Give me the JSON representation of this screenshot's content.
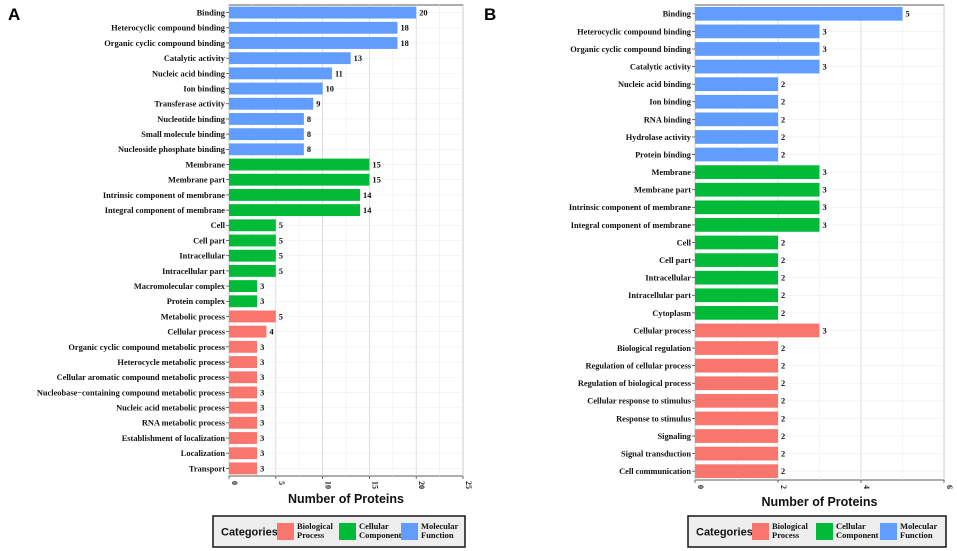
{
  "chart_data": [
    {
      "panel": "A",
      "type": "bar",
      "orientation": "horizontal",
      "xlabel": "Number of Proteins",
      "xlim": [
        0,
        25
      ],
      "xticks": [
        0,
        5,
        10,
        15,
        20,
        25
      ],
      "grid": true,
      "legend": {
        "title": "Categories",
        "position": "bottom",
        "items": [
          {
            "label_lines": [
              "Biological",
              "Process"
            ],
            "color": "#F8766D"
          },
          {
            "label_lines": [
              "Cellular",
              "Component"
            ],
            "color": "#00BA38"
          },
          {
            "label_lines": [
              "Molecular",
              "Function"
            ],
            "color": "#619CFF"
          }
        ]
      },
      "bars": [
        {
          "label": "Binding",
          "value": 20,
          "color": "#619CFF"
        },
        {
          "label": "Heterocyclic compound binding",
          "value": 18,
          "color": "#619CFF"
        },
        {
          "label": "Organic cyclic compound binding",
          "value": 18,
          "color": "#619CFF"
        },
        {
          "label": "Catalytic activity",
          "value": 13,
          "color": "#619CFF"
        },
        {
          "label": "Nucleic acid binding",
          "value": 11,
          "color": "#619CFF"
        },
        {
          "label": "Ion binding",
          "value": 10,
          "color": "#619CFF"
        },
        {
          "label": "Transferase activity",
          "value": 9,
          "color": "#619CFF"
        },
        {
          "label": "Nucleotide binding",
          "value": 8,
          "color": "#619CFF"
        },
        {
          "label": "Small molecule binding",
          "value": 8,
          "color": "#619CFF"
        },
        {
          "label": "Nucleoside phosphate binding",
          "value": 8,
          "color": "#619CFF"
        },
        {
          "label": "Membrane",
          "value": 15,
          "color": "#00BA38"
        },
        {
          "label": "Membrane part",
          "value": 15,
          "color": "#00BA38"
        },
        {
          "label": "Intrinsic component of membrane",
          "value": 14,
          "color": "#00BA38"
        },
        {
          "label": "Integral component of membrane",
          "value": 14,
          "color": "#00BA38"
        },
        {
          "label": "Cell",
          "value": 5,
          "color": "#00BA38"
        },
        {
          "label": "Cell part",
          "value": 5,
          "color": "#00BA38"
        },
        {
          "label": "Intracellular",
          "value": 5,
          "color": "#00BA38"
        },
        {
          "label": "Intracellular part",
          "value": 5,
          "color": "#00BA38"
        },
        {
          "label": "Macromolecular complex",
          "value": 3,
          "color": "#00BA38"
        },
        {
          "label": "Protein complex",
          "value": 3,
          "color": "#00BA38"
        },
        {
          "label": "Metabolic process",
          "value": 5,
          "color": "#F8766D"
        },
        {
          "label": "Cellular process",
          "value": 4,
          "color": "#F8766D"
        },
        {
          "label": "Organic cyclic compound metabolic process",
          "value": 3,
          "color": "#F8766D"
        },
        {
          "label": "Heterocycle metabolic process",
          "value": 3,
          "color": "#F8766D"
        },
        {
          "label": "Cellular aromatic compound metabolic process",
          "value": 3,
          "color": "#F8766D"
        },
        {
          "label": "Nucleobase−containing compound metabolic process",
          "value": 3,
          "color": "#F8766D"
        },
        {
          "label": "Nucleic acid metabolic process",
          "value": 3,
          "color": "#F8766D"
        },
        {
          "label": "RNA metabolic process",
          "value": 3,
          "color": "#F8766D"
        },
        {
          "label": "Establishment of localization",
          "value": 3,
          "color": "#F8766D"
        },
        {
          "label": "Localization",
          "value": 3,
          "color": "#F8766D"
        },
        {
          "label": "Transport",
          "value": 3,
          "color": "#F8766D"
        }
      ]
    },
    {
      "panel": "B",
      "type": "bar",
      "orientation": "horizontal",
      "xlabel": "Number of Proteins",
      "xlim": [
        0,
        6
      ],
      "xticks": [
        0,
        2,
        4,
        6
      ],
      "grid": true,
      "legend": {
        "title": "Categories",
        "position": "bottom",
        "items": [
          {
            "label_lines": [
              "Biological",
              "Process"
            ],
            "color": "#F8766D"
          },
          {
            "label_lines": [
              "Cellular",
              "Component"
            ],
            "color": "#00BA38"
          },
          {
            "label_lines": [
              "Molecular",
              "Function"
            ],
            "color": "#619CFF"
          }
        ]
      },
      "bars": [
        {
          "label": "Binding",
          "value": 5,
          "color": "#619CFF"
        },
        {
          "label": "Heterocyclic compound binding",
          "value": 3,
          "color": "#619CFF"
        },
        {
          "label": "Organic cyclic compound binding",
          "value": 3,
          "color": "#619CFF"
        },
        {
          "label": "Catalytic activity",
          "value": 3,
          "color": "#619CFF"
        },
        {
          "label": "Nucleic acid binding",
          "value": 2,
          "color": "#619CFF"
        },
        {
          "label": "Ion binding",
          "value": 2,
          "color": "#619CFF"
        },
        {
          "label": "RNA binding",
          "value": 2,
          "color": "#619CFF"
        },
        {
          "label": "Hydrolase activity",
          "value": 2,
          "color": "#619CFF"
        },
        {
          "label": "Protein binding",
          "value": 2,
          "color": "#619CFF"
        },
        {
          "label": "Membrane",
          "value": 3,
          "color": "#00BA38"
        },
        {
          "label": "Membrane part",
          "value": 3,
          "color": "#00BA38"
        },
        {
          "label": "Intrinsic component of membrane",
          "value": 3,
          "color": "#00BA38"
        },
        {
          "label": "Integral component of membrane",
          "value": 3,
          "color": "#00BA38"
        },
        {
          "label": "Cell",
          "value": 2,
          "color": "#00BA38"
        },
        {
          "label": "Cell part",
          "value": 2,
          "color": "#00BA38"
        },
        {
          "label": "Intracellular",
          "value": 2,
          "color": "#00BA38"
        },
        {
          "label": "Intracellular part",
          "value": 2,
          "color": "#00BA38"
        },
        {
          "label": "Cytoplasm",
          "value": 2,
          "color": "#00BA38"
        },
        {
          "label": "Cellular process",
          "value": 3,
          "color": "#F8766D"
        },
        {
          "label": "Biological regulation",
          "value": 2,
          "color": "#F8766D"
        },
        {
          "label": "Regulation of cellular process",
          "value": 2,
          "color": "#F8766D"
        },
        {
          "label": "Regulation of biological process",
          "value": 2,
          "color": "#F8766D"
        },
        {
          "label": "Cellular response to stimulus",
          "value": 2,
          "color": "#F8766D"
        },
        {
          "label": "Response to stimulus",
          "value": 2,
          "color": "#F8766D"
        },
        {
          "label": "Signaling",
          "value": 2,
          "color": "#F8766D"
        },
        {
          "label": "Signal transduction",
          "value": 2,
          "color": "#F8766D"
        },
        {
          "label": "Cell communication",
          "value": 2,
          "color": "#F8766D"
        }
      ]
    }
  ]
}
